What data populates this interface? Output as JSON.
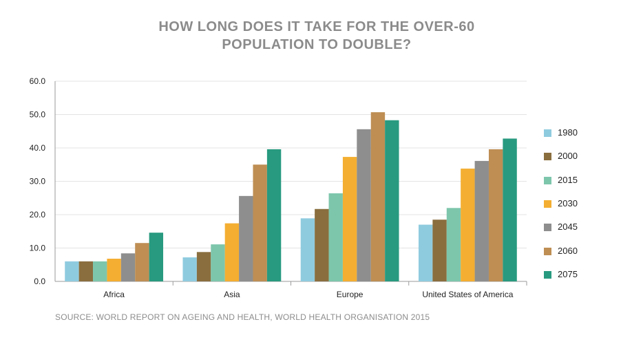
{
  "title_lines": [
    "HOW LONG DOES IT TAKE FOR THE OVER-60",
    "POPULATION TO DOUBLE?"
  ],
  "source": "SOURCE: WORLD REPORT ON AGEING AND HEALTH, WORLD HEALTH ORGANISATION 2015",
  "chart_data": {
    "type": "bar",
    "title": "HOW LONG DOES IT TAKE FOR THE OVER-60 POPULATION TO DOUBLE?",
    "xlabel": "",
    "ylabel": "",
    "ylim": [
      0,
      60
    ],
    "yticks": [
      "0.0",
      "10.0",
      "20.0",
      "30.0",
      "40.0",
      "50.0",
      "60.0"
    ],
    "grid": true,
    "legend_position": "right",
    "categories": [
      "Africa",
      "Asia",
      "Europe",
      "United States of America"
    ],
    "series": [
      {
        "name": "1980",
        "color": "#8fcbdf",
        "values": [
          6.0,
          7.2,
          18.9,
          17.0
        ]
      },
      {
        "name": "2000",
        "color": "#8a6e3e",
        "values": [
          6.0,
          8.8,
          21.7,
          18.5
        ]
      },
      {
        "name": "2015",
        "color": "#7dc6ac",
        "values": [
          6.0,
          11.1,
          26.4,
          22.0
        ]
      },
      {
        "name": "2030",
        "color": "#f4ae31",
        "values": [
          6.8,
          17.4,
          37.3,
          33.8
        ]
      },
      {
        "name": "2045",
        "color": "#8e8e8e",
        "values": [
          8.4,
          25.6,
          45.6,
          36.1
        ]
      },
      {
        "name": "2060",
        "color": "#be8e53",
        "values": [
          11.5,
          35.0,
          50.7,
          39.6
        ]
      },
      {
        "name": "2075",
        "color": "#289a7f",
        "values": [
          14.6,
          39.6,
          48.3,
          42.8
        ]
      }
    ]
  }
}
